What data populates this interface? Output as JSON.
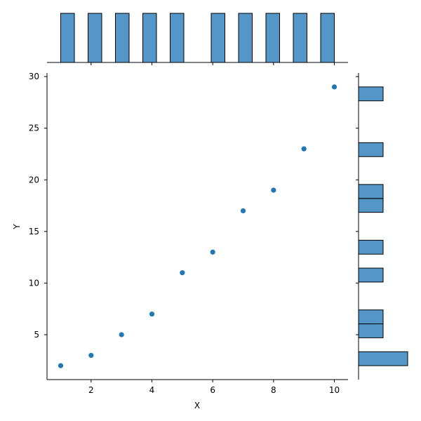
{
  "chart_data": {
    "type": "scatter",
    "title": "",
    "xlabel": "X",
    "ylabel": "Y",
    "x": [
      1,
      2,
      3,
      4,
      5,
      6,
      7,
      8,
      9,
      10
    ],
    "y": [
      2,
      3,
      5,
      7,
      11,
      13,
      17,
      19,
      23,
      29
    ],
    "xlim": [
      0.55,
      10.45
    ],
    "ylim": [
      0.65,
      30.35
    ],
    "xticks": [
      2,
      4,
      6,
      8,
      10
    ],
    "yticks": [
      5,
      10,
      15,
      20,
      25,
      30
    ],
    "grid": false,
    "point_color": "#1f77b4",
    "marginal_x_histogram": {
      "type": "bar",
      "bins": [
        [
          1,
          1.45
        ],
        [
          1.9,
          2.35
        ],
        [
          2.8,
          3.25
        ],
        [
          3.7,
          4.15
        ],
        [
          4.6,
          5.05
        ],
        [
          5.95,
          6.4
        ],
        [
          6.85,
          7.3
        ],
        [
          7.75,
          8.2
        ],
        [
          8.65,
          9.1
        ],
        [
          9.55,
          10
        ]
      ],
      "counts": [
        1,
        1,
        1,
        1,
        1,
        1,
        1,
        1,
        1,
        1
      ]
    },
    "marginal_y_histogram": {
      "type": "bar",
      "bins": [
        [
          2,
          3.35
        ],
        [
          4.7,
          6.05
        ],
        [
          6.05,
          7.4
        ],
        [
          10.1,
          11.45
        ],
        [
          12.8,
          14.15
        ],
        [
          16.85,
          18.2
        ],
        [
          18.2,
          19.55
        ],
        [
          22.25,
          23.6
        ],
        [
          27.65,
          29
        ]
      ],
      "counts": [
        2,
        1,
        1,
        1,
        1,
        1,
        1,
        1,
        1
      ]
    },
    "histogram_color": "#5496c8"
  }
}
